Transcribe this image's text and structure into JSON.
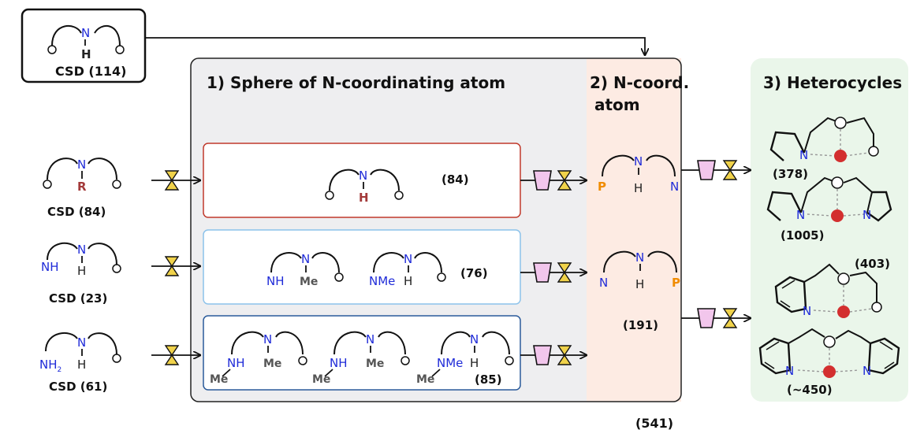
{
  "sections": {
    "s1": "1) Sphere of N-coordinating atom",
    "s2a": "2) N-coord.",
    "s2b": "atom",
    "s3": "3) Heterocycles"
  },
  "sources": {
    "top_label": "CSD",
    "top_count": "(114)",
    "r_label": "CSD (84)",
    "nh_label": "CSD (23)",
    "nh2_label": "CSD (61)"
  },
  "counts": {
    "row1": "(84)",
    "row2": "(76)",
    "row3": "(85)",
    "ncoord": "(191)",
    "total": "(541)",
    "het1": "(378)",
    "het2": "(1005)",
    "het3": "(403)",
    "het4": "(~450)"
  },
  "atoms": {
    "N": "N",
    "H": "H",
    "R": "R",
    "Me": "Me",
    "P": "P",
    "NH": "NH",
    "NMe": "NMe",
    "NH2": "NH",
    "sub2": "2"
  },
  "colors": {
    "panel1_bg": "#eeeef0",
    "panel2_bg": "#fdebe3",
    "panel3_bg": "#eaf6ea",
    "box_red": "#c0392b",
    "box_lightblue": "#8cc2ea",
    "box_darkblue": "#2a5a9a",
    "nitrogen": "#1f2bd8",
    "metal": "#d32f2f",
    "phosphorus": "#f08c00",
    "filter_cup": "#f2c6ec",
    "hourglass": "#f0d24a"
  }
}
